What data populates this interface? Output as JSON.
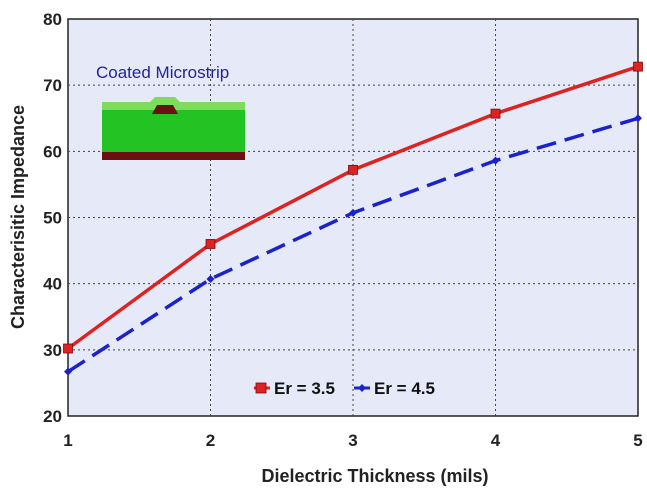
{
  "chart_data": {
    "type": "line",
    "x": [
      1,
      2,
      3,
      4,
      5
    ],
    "xlabel": "Dielectric Thickness (mils)",
    "ylabel": "Characterisitic Impedance",
    "xlim": [
      1,
      5
    ],
    "ylim": [
      20,
      80
    ],
    "x_ticks": [
      "1",
      "2",
      "3",
      "4",
      "5"
    ],
    "y_ticks": [
      "20",
      "30",
      "40",
      "50",
      "60",
      "70",
      "80"
    ],
    "grid": true,
    "legend_position": "bottom-center",
    "annotation": "Coated Microstrip",
    "series": [
      {
        "name": "Er = 3.5",
        "values": [
          30.2,
          46.0,
          57.2,
          65.7,
          72.8
        ],
        "color": "#dd2222",
        "marker": "square",
        "style": "solid"
      },
      {
        "name": "Er = 4.5",
        "values": [
          26.7,
          40.7,
          50.7,
          58.6,
          65.0
        ],
        "color": "#1a22cc",
        "marker": "diamond",
        "style": "dashed"
      }
    ],
    "colors": {
      "plot_bg": "#e6e9f7",
      "annotation_text": "#22229a"
    },
    "icons": [
      "microstrip-cross-section-icon"
    ]
  }
}
